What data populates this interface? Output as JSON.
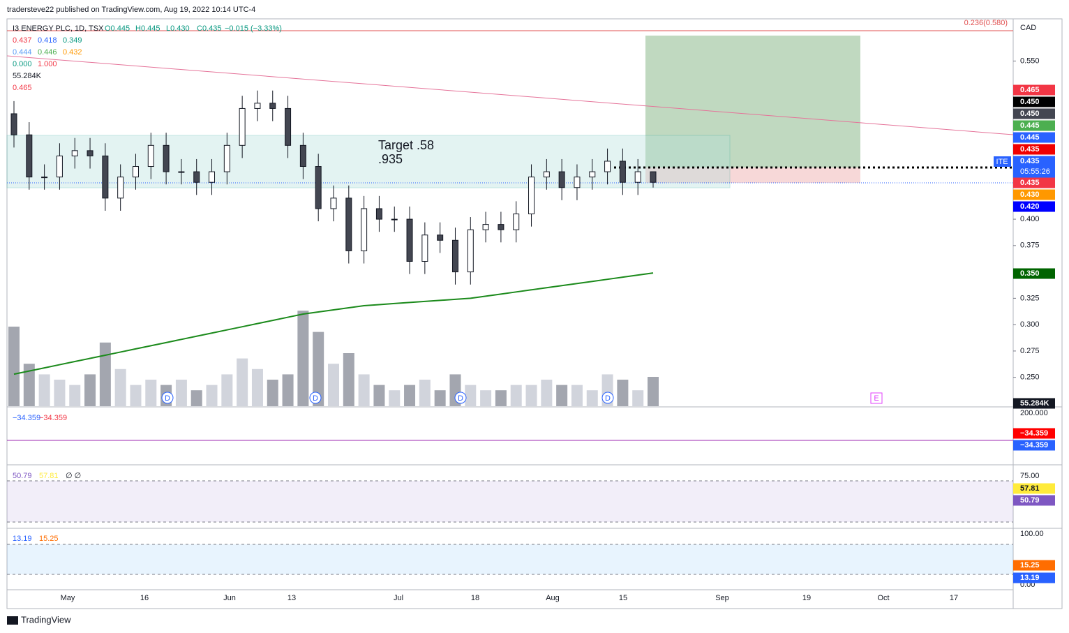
{
  "header": {
    "text": "tradersteve22 published on TradingView.com, Aug 19, 2022 10:14 UTC-4"
  },
  "legend": {
    "title": "I3 ENERGY PLC, 1D, TSX",
    "ohlc": [
      "O0.445",
      "H0.445",
      "L0.430",
      "C0.435",
      "−0.015 (−3.33%)"
    ],
    "rows": [
      [
        {
          "t": "0.437",
          "c": "#f23645"
        },
        {
          "t": "0.418",
          "c": "#2962ff"
        },
        {
          "t": "0.349",
          "c": "#089981"
        }
      ],
      [
        {
          "t": "0.444",
          "c": "#5b9cf6"
        },
        {
          "t": "0.446",
          "c": "#4caf50"
        },
        {
          "t": "0.432",
          "c": "#ff9800"
        }
      ],
      [
        {
          "t": "0.000",
          "c": "#089981"
        },
        {
          "t": "1.000",
          "c": "#f23645"
        }
      ],
      [
        {
          "t": "55.284K",
          "c": "#131722"
        }
      ],
      [
        {
          "t": "0.465",
          "c": "#f23645"
        }
      ]
    ]
  },
  "fib_label": "0.236(0.580)",
  "currency": "CAD",
  "annotation": [
    "Target .58",
    ".935"
  ],
  "markers": [
    "D",
    "D",
    "D",
    "D",
    "E"
  ],
  "badges": [
    {
      "t": "0.465",
      "c": "#f23645"
    },
    {
      "t": "0.450",
      "c": "#000000"
    },
    {
      "t": "0.450",
      "c": "#434651"
    },
    {
      "t": "0.445",
      "c": "#4caf50"
    },
    {
      "t": "0.445",
      "c": "#2962ff"
    },
    {
      "t": "0.435",
      "c": "#f00000"
    },
    {
      "t": "0.435",
      "c": "#2962ff"
    },
    {
      "t": "0.435",
      "c": "#f23645"
    },
    {
      "t": "0.430",
      "c": "#ff9800"
    },
    {
      "t": "0.420",
      "c": "#0000ff"
    },
    {
      "t": "0.350",
      "c": "#006400"
    },
    {
      "t": "55.284K",
      "c": "#131722"
    }
  ],
  "symbol": "ITE",
  "countdown": "05:55:26",
  "panes": {
    "macd": {
      "labels": [
        "−34.359",
        "−34.359"
      ],
      "axis": [
        "200.000"
      ],
      "badges": [
        {
          "t": "−34.359",
          "c": "#ff0000"
        },
        {
          "t": "−34.359",
          "c": "#2962ff"
        }
      ]
    },
    "rsi": {
      "labels": [
        "50.79",
        "57.81",
        "∅ ∅"
      ],
      "axis": [
        "75.00"
      ],
      "badges": [
        {
          "t": "57.81",
          "c": "#ffeb3b"
        },
        {
          "t": "50.79",
          "c": "#7e57c2"
        }
      ]
    },
    "stoch": {
      "labels": [
        "13.19",
        "15.25"
      ],
      "axis": [
        "100.00",
        "0.00"
      ],
      "badges": [
        {
          "t": "15.25",
          "c": "#ff6d00"
        },
        {
          "t": "13.19",
          "c": "#2962ff"
        }
      ]
    }
  },
  "dates": [
    "May",
    "16",
    "Jun",
    "13",
    "Jul",
    "18",
    "Aug",
    "15",
    "Sep",
    "19",
    "Oct",
    "17"
  ],
  "footer": "TradingView",
  "chart_data": {
    "type": "candlestick",
    "ylim": [
      0.222,
      0.59
    ],
    "yticks": [
      {
        "value": 0.55,
        "label": "0.550"
      },
      {
        "value": 0.4,
        "label": "0.400"
      },
      {
        "value": 0.375,
        "label": "0.375"
      },
      {
        "value": 0.325,
        "label": "0.325"
      },
      {
        "value": 0.3,
        "label": "0.300"
      },
      {
        "value": 0.275,
        "label": "0.275"
      },
      {
        "value": 0.25,
        "label": "0.250"
      }
    ],
    "candles": {
      "open": [
        0.5,
        0.48,
        0.44,
        0.44,
        0.46,
        0.465,
        0.46,
        0.42,
        0.44,
        0.45,
        0.47,
        0.445,
        0.445,
        0.435,
        0.445,
        0.47,
        0.505,
        0.51,
        0.505,
        0.47,
        0.45,
        0.41,
        0.42,
        0.37,
        0.41,
        0.4,
        0.4,
        0.36,
        0.385,
        0.38,
        0.35,
        0.39,
        0.395,
        0.39,
        0.405,
        0.44,
        0.445,
        0.43,
        0.44,
        0.445,
        0.455,
        0.435,
        0.445
      ],
      "high": [
        0.512,
        0.492,
        0.452,
        0.472,
        0.477,
        0.477,
        0.472,
        0.452,
        0.462,
        0.482,
        0.482,
        0.457,
        0.457,
        0.457,
        0.482,
        0.517,
        0.522,
        0.522,
        0.517,
        0.482,
        0.462,
        0.432,
        0.432,
        0.422,
        0.422,
        0.412,
        0.412,
        0.397,
        0.397,
        0.392,
        0.402,
        0.407,
        0.407,
        0.417,
        0.452,
        0.457,
        0.457,
        0.452,
        0.457,
        0.467,
        0.467,
        0.457,
        0.445
      ],
      "low": [
        0.468,
        0.428,
        0.428,
        0.428,
        0.448,
        0.448,
        0.408,
        0.408,
        0.428,
        0.438,
        0.433,
        0.433,
        0.423,
        0.423,
        0.433,
        0.458,
        0.493,
        0.493,
        0.458,
        0.438,
        0.398,
        0.398,
        0.358,
        0.358,
        0.388,
        0.388,
        0.348,
        0.348,
        0.368,
        0.338,
        0.338,
        0.378,
        0.378,
        0.378,
        0.393,
        0.428,
        0.418,
        0.418,
        0.428,
        0.433,
        0.423,
        0.423,
        0.43
      ],
      "close": [
        0.48,
        0.44,
        0.44,
        0.46,
        0.465,
        0.46,
        0.42,
        0.44,
        0.45,
        0.47,
        0.445,
        0.445,
        0.435,
        0.445,
        0.47,
        0.505,
        0.51,
        0.505,
        0.47,
        0.45,
        0.41,
        0.42,
        0.37,
        0.41,
        0.4,
        0.4,
        0.36,
        0.385,
        0.38,
        0.35,
        0.39,
        0.395,
        0.39,
        0.405,
        0.44,
        0.445,
        0.43,
        0.44,
        0.445,
        0.455,
        0.435,
        0.445,
        0.435
      ]
    },
    "volume": [
      150,
      80,
      60,
      50,
      40,
      60,
      120,
      70,
      40,
      50,
      40,
      50,
      30,
      40,
      60,
      90,
      70,
      50,
      60,
      180,
      140,
      80,
      100,
      60,
      40,
      30,
      40,
      50,
      30,
      60,
      40,
      30,
      30,
      40,
      40,
      50,
      40,
      40,
      30,
      60,
      50,
      30,
      55.284
    ],
    "ma200": {
      "color": "#1b8a1b",
      "values": [
        0.253,
        0.256,
        0.259,
        0.262,
        0.265,
        0.268,
        0.271,
        0.274,
        0.277,
        0.28,
        0.283,
        0.286,
        0.289,
        0.292,
        0.295,
        0.298,
        0.301,
        0.304,
        0.307,
        0.31,
        0.312,
        0.314,
        0.316,
        0.318,
        0.319,
        0.32,
        0.321,
        0.322,
        0.323,
        0.324,
        0.325,
        0.327,
        0.329,
        0.331,
        0.333,
        0.335,
        0.337,
        0.339,
        0.341,
        0.343,
        0.345,
        0.347,
        0.349
      ]
    }
  }
}
